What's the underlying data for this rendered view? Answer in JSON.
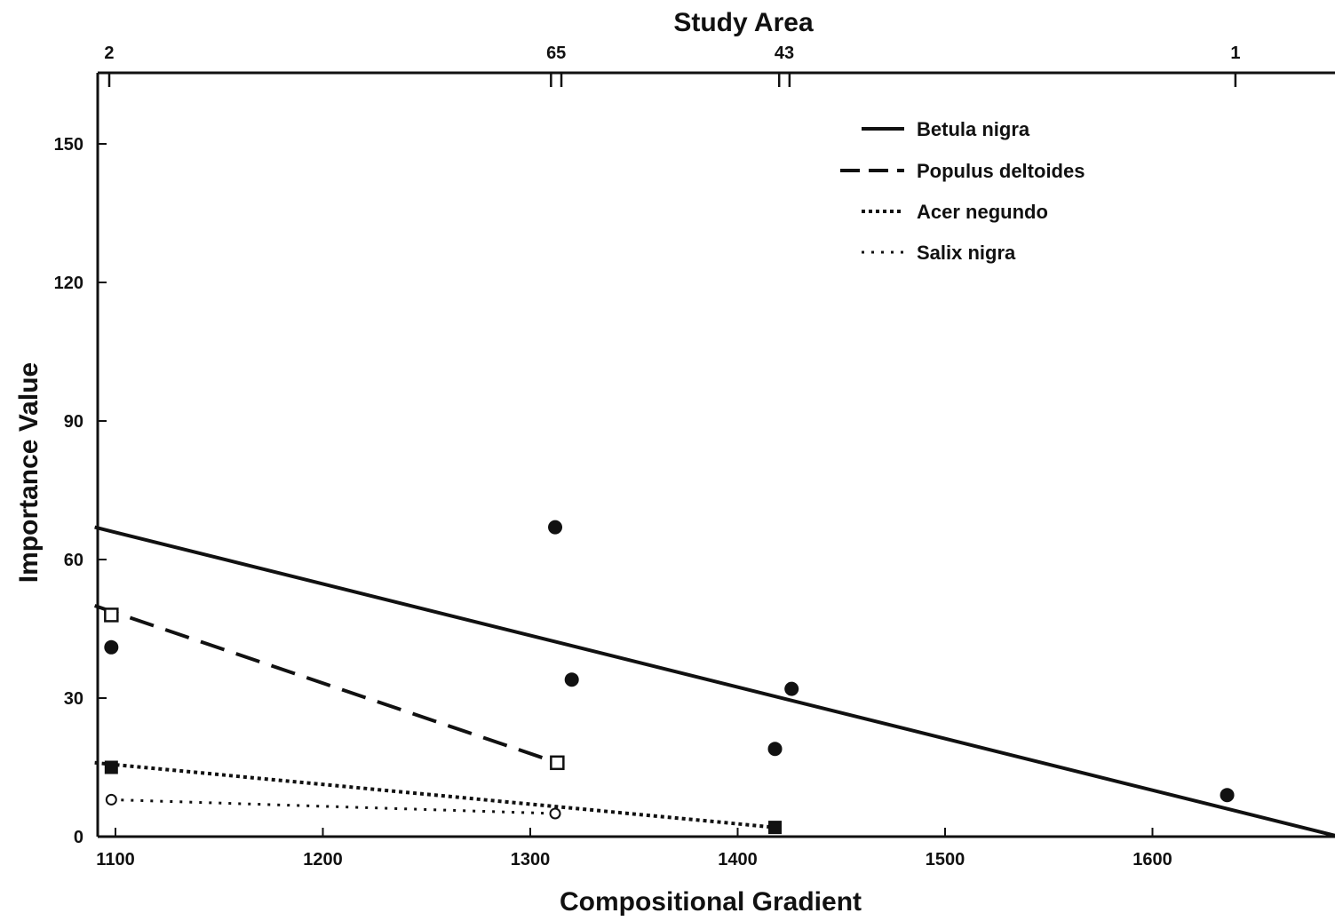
{
  "chart_data": {
    "type": "scatter",
    "title": "",
    "xlabel": "Compositional Gradient",
    "ylabel": "Importance Value",
    "top_axis_label": "Study Area",
    "xlim": [
      1090,
      1690
    ],
    "ylim": [
      0,
      165
    ],
    "x_ticks": [
      1100,
      1200,
      1300,
      1400,
      1500,
      1600
    ],
    "x_tick_labels": [
      "1100",
      "1200",
      "1300",
      "1400",
      "1500",
      "1600"
    ],
    "y_ticks": [
      0,
      30,
      60,
      90,
      120,
      150
    ],
    "y_tick_labels": [
      "0",
      "30",
      "60",
      "90",
      "120",
      "150"
    ],
    "study_areas": [
      {
        "label": "2",
        "ticks": [
          1097
        ]
      },
      {
        "label": "65",
        "ticks": [
          1310,
          1315
        ]
      },
      {
        "label": "43",
        "ticks": [
          1420,
          1425
        ]
      },
      {
        "label": "1",
        "ticks": [
          1640
        ]
      }
    ],
    "legend_position": "top-right",
    "series": [
      {
        "name": "Betula nigra",
        "line_style": "solid",
        "marker": "filled-circle",
        "color": "#111111",
        "points": [
          [
            1098,
            41
          ],
          [
            1312,
            67
          ],
          [
            1320,
            34
          ],
          [
            1418,
            19
          ],
          [
            1426,
            32
          ],
          [
            1636,
            9
          ]
        ],
        "fit_line": [
          [
            1090,
            67
          ],
          [
            1690,
            0
          ]
        ]
      },
      {
        "name": "Populus deltoides",
        "line_style": "long-dash",
        "marker": "open-square",
        "color": "#111111",
        "points": [
          [
            1098,
            48
          ],
          [
            1313,
            16
          ]
        ],
        "fit_line": [
          [
            1090,
            50
          ],
          [
            1313,
            16
          ]
        ]
      },
      {
        "name": "Acer negundo",
        "line_style": "dense-dot",
        "marker": "filled-square",
        "color": "#111111",
        "points": [
          [
            1098,
            15
          ],
          [
            1418,
            2
          ]
        ],
        "fit_line": [
          [
            1090,
            16
          ],
          [
            1418,
            2
          ]
        ]
      },
      {
        "name": "Salix nigra",
        "line_style": "sparse-dot",
        "marker": "open-circle",
        "color": "#111111",
        "points": [
          [
            1098,
            8
          ],
          [
            1312,
            5
          ]
        ],
        "fit_line": [
          [
            1098,
            8
          ],
          [
            1312,
            5
          ]
        ]
      }
    ]
  }
}
